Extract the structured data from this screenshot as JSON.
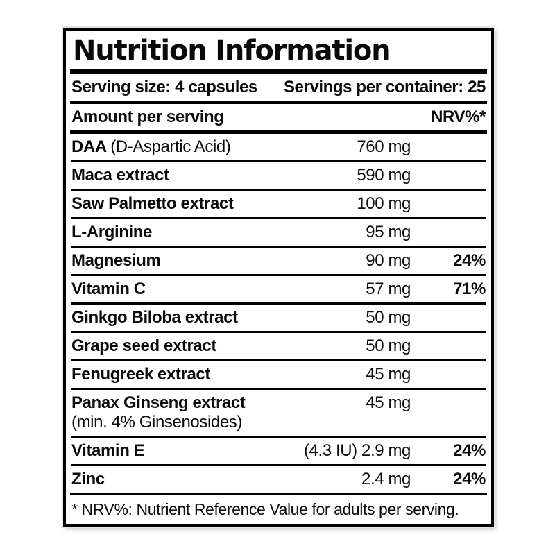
{
  "label": {
    "title": "Nutrition Information",
    "serving": {
      "size": "Serving size: 4 capsules",
      "per_container": "Servings per container: 25"
    },
    "header": {
      "amount": "Amount per serving",
      "nrv": "NRV%*"
    },
    "rows": [
      {
        "name": "DAA",
        "note": "(D-Aspartic Acid)",
        "amount": "760 mg",
        "nrv": ""
      },
      {
        "name": "Maca extract",
        "note": "",
        "amount": "590 mg",
        "nrv": ""
      },
      {
        "name": "Saw Palmetto extract",
        "note": "",
        "amount": "100 mg",
        "nrv": ""
      },
      {
        "name": "L-Arginine",
        "note": "",
        "amount": "95 mg",
        "nrv": ""
      },
      {
        "name": "Magnesium",
        "note": "",
        "amount": "90 mg",
        "nrv": "24%"
      },
      {
        "name": "Vitamin C",
        "note": "",
        "amount": "57 mg",
        "nrv": "71%"
      },
      {
        "name": "Ginkgo Biloba extract",
        "note": "",
        "amount": "50 mg",
        "nrv": ""
      },
      {
        "name": "Grape seed extract",
        "note": "",
        "amount": "50 mg",
        "nrv": ""
      },
      {
        "name": "Fenugreek extract",
        "note": "",
        "amount": "45 mg",
        "nrv": ""
      },
      {
        "name": "Panax Ginseng extract",
        "note": "",
        "sub": "(min. 4% Ginsenosides)",
        "amount": "45 mg",
        "nrv": ""
      },
      {
        "name": "Vitamin E",
        "note": "",
        "amount": "(4.3 IU) 2.9 mg",
        "nrv": "24%"
      },
      {
        "name": "Zinc",
        "note": "",
        "amount": "2.4 mg",
        "nrv": "24%"
      }
    ],
    "footnote": "* NRV%: Nutrient Reference Value for adults per serving."
  },
  "colors": {
    "text": "#0b0b0b",
    "border": "#000000",
    "background": "#ffffff"
  }
}
